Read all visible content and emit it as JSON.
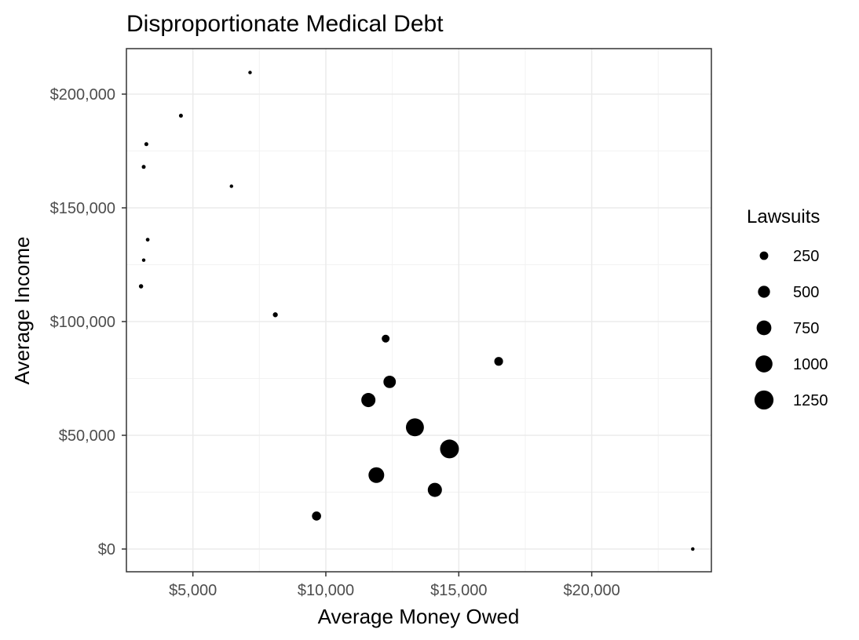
{
  "chart_data": {
    "type": "scatter",
    "title": "Disproportionate Medical Debt",
    "xlabel": "Average Money Owed",
    "ylabel": "Average Income",
    "xlim": [
      2500,
      24500
    ],
    "ylim": [
      -10000,
      220000
    ],
    "x_ticks": [
      5000,
      10000,
      15000,
      20000
    ],
    "x_tick_labels": [
      "$5,000",
      "$10,000",
      "$15,000",
      "$20,000"
    ],
    "y_ticks": [
      0,
      50000,
      100000,
      150000,
      200000
    ],
    "y_tick_labels": [
      "$0",
      "$50,000",
      "$100,000",
      "$150,000",
      "$200,000"
    ],
    "grid": true,
    "size_legend": {
      "title": "Lawsuits",
      "placement": "right",
      "values": [
        250,
        500,
        750,
        1000,
        1250
      ],
      "labels": [
        "250",
        "500",
        "750",
        "1000",
        "1250"
      ]
    },
    "point_color": "#000000",
    "points": [
      {
        "x": 7150,
        "y": 209500,
        "size": 40
      },
      {
        "x": 4550,
        "y": 190500,
        "size": 50
      },
      {
        "x": 3250,
        "y": 178000,
        "size": 50
      },
      {
        "x": 3150,
        "y": 168000,
        "size": 50
      },
      {
        "x": 6450,
        "y": 159500,
        "size": 40
      },
      {
        "x": 3300,
        "y": 136000,
        "size": 45
      },
      {
        "x": 3150,
        "y": 127000,
        "size": 40
      },
      {
        "x": 3050,
        "y": 115500,
        "size": 60
      },
      {
        "x": 8100,
        "y": 103000,
        "size": 80
      },
      {
        "x": 12250,
        "y": 92500,
        "size": 200
      },
      {
        "x": 16500,
        "y": 82500,
        "size": 250
      },
      {
        "x": 12400,
        "y": 73500,
        "size": 500
      },
      {
        "x": 11600,
        "y": 65500,
        "size": 650
      },
      {
        "x": 13350,
        "y": 53500,
        "size": 1050
      },
      {
        "x": 14650,
        "y": 44000,
        "size": 1150
      },
      {
        "x": 11900,
        "y": 32500,
        "size": 800
      },
      {
        "x": 14100,
        "y": 26000,
        "size": 650
      },
      {
        "x": 9650,
        "y": 14500,
        "size": 270
      },
      {
        "x": 23800,
        "y": 0,
        "size": 40
      }
    ]
  }
}
